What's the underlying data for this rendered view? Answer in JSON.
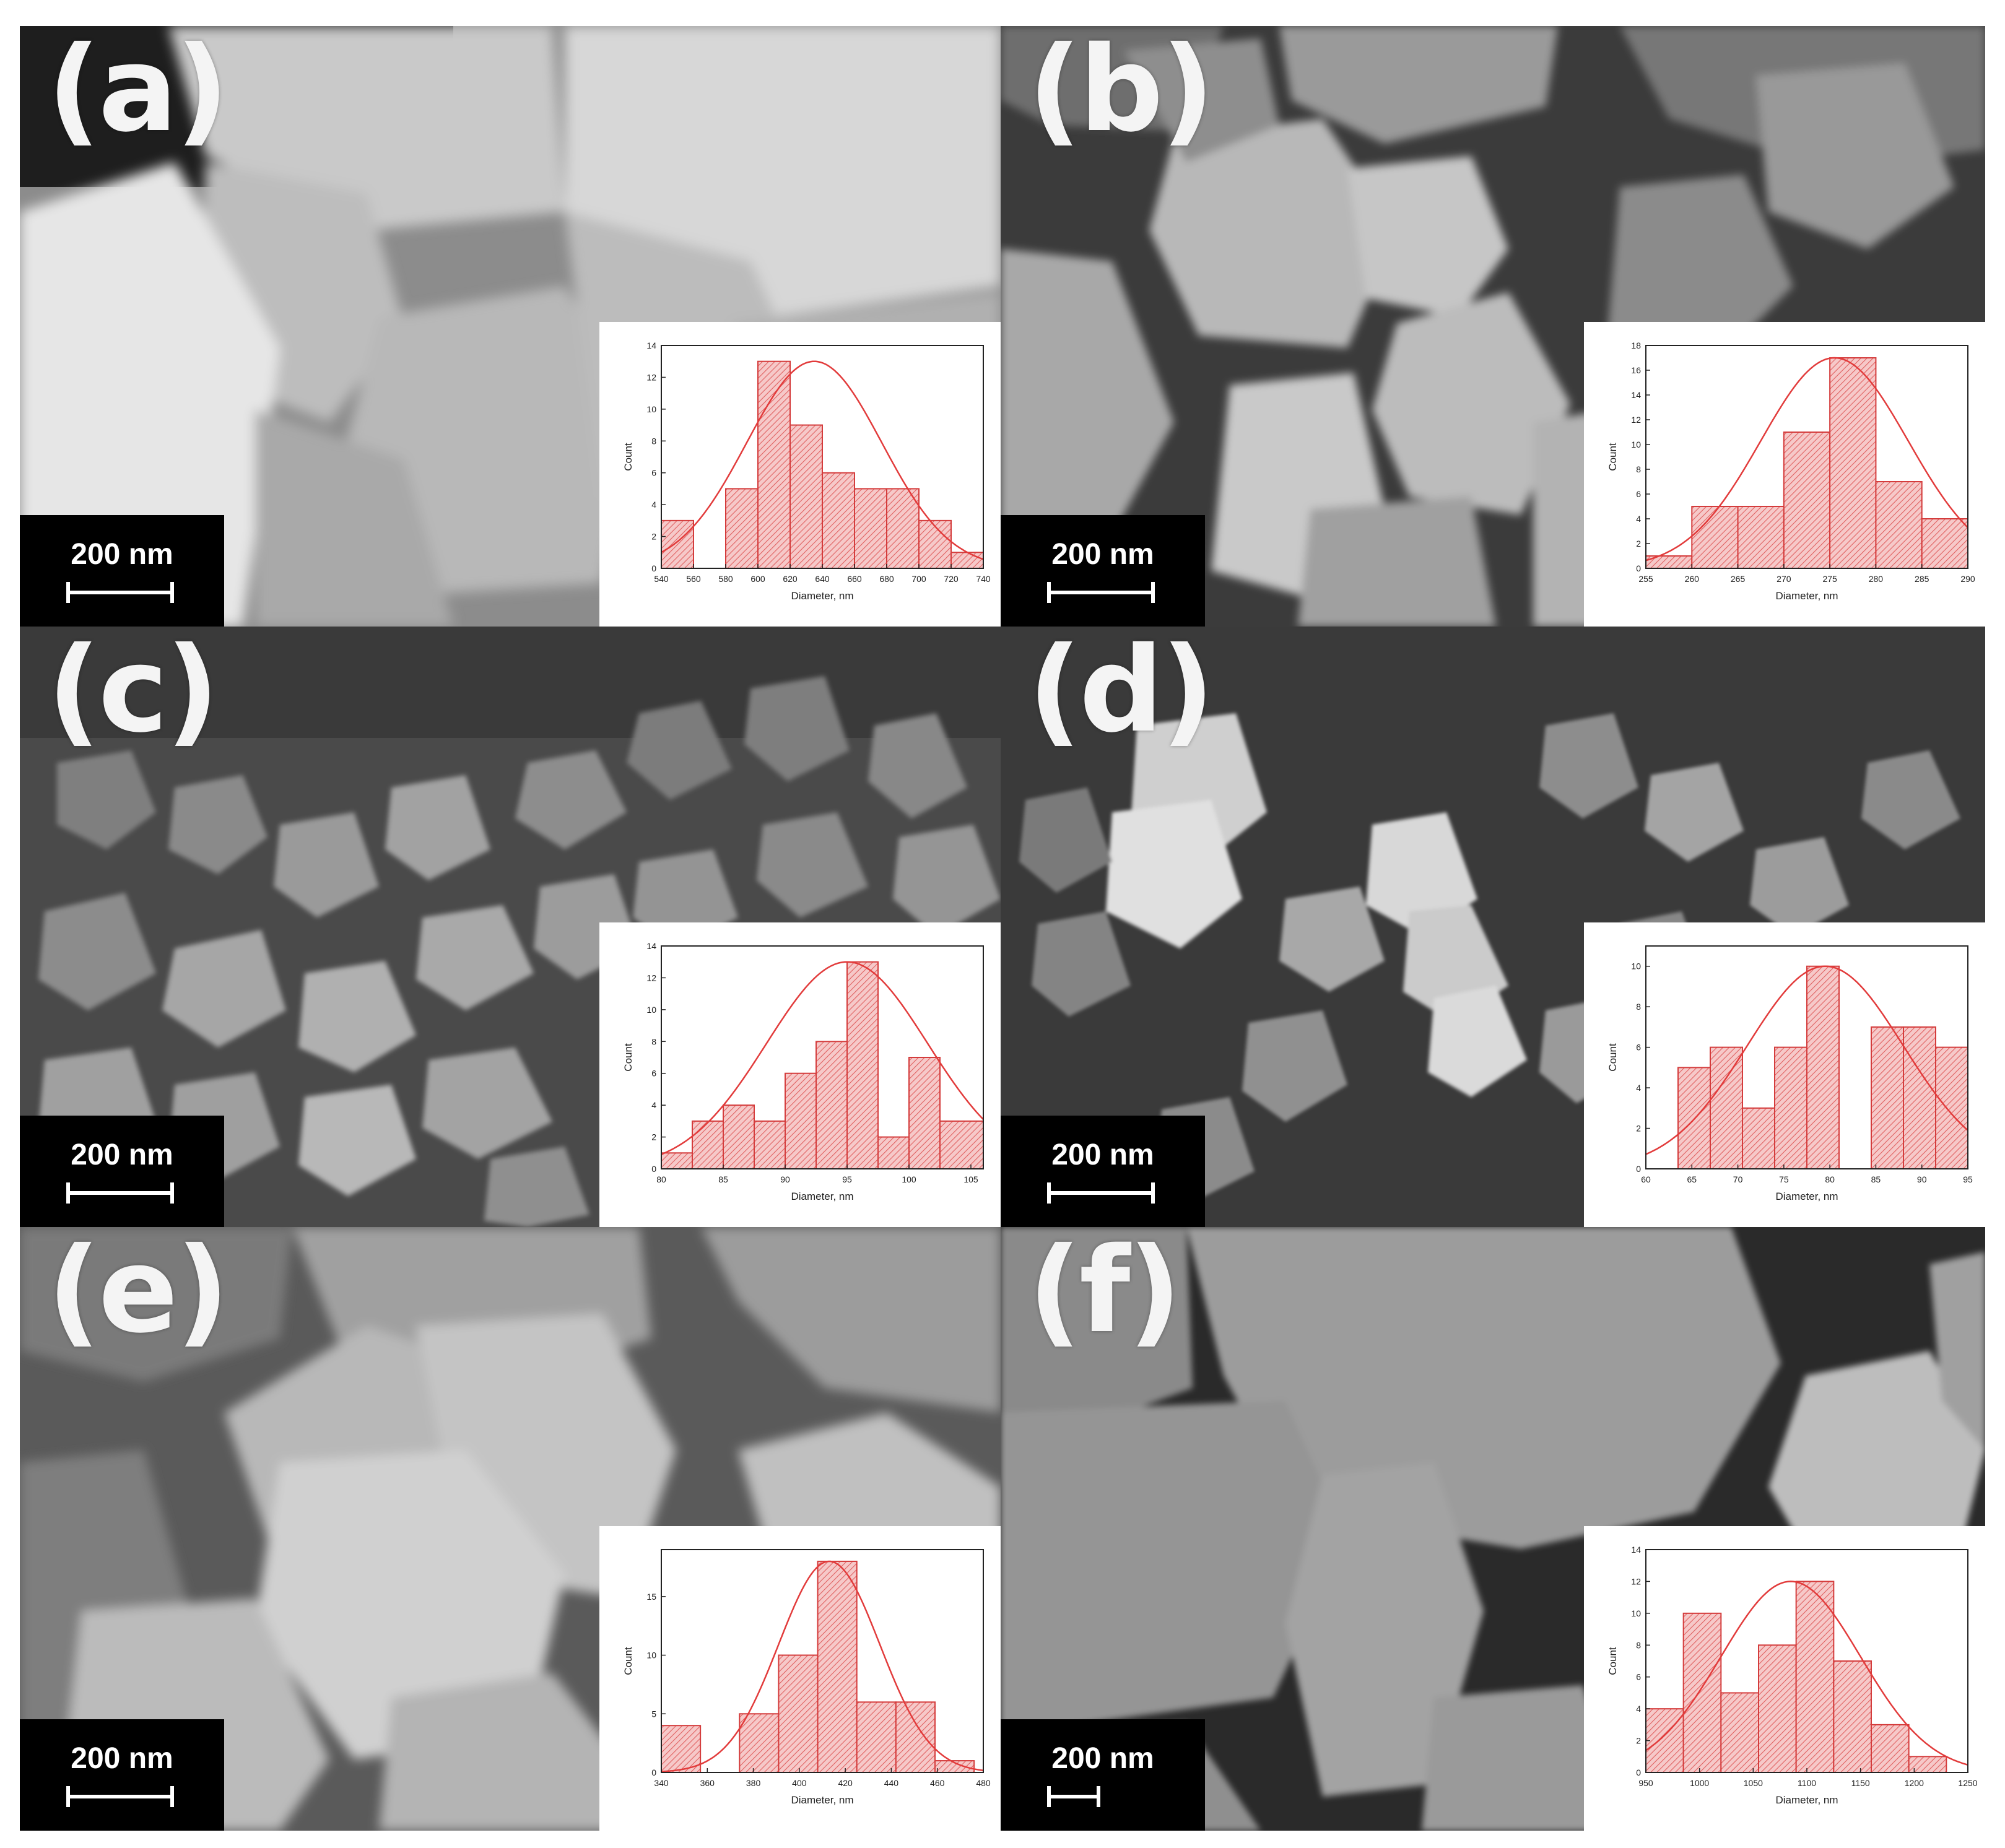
{
  "panels": [
    {
      "label": "(a)",
      "scale_bar": "200 nm",
      "histogram": {
        "type": "bar",
        "xlabel": "Diameter, nm",
        "ylabel": "Count",
        "xlim": [
          540,
          740
        ],
        "ylim": [
          0,
          14
        ],
        "xticks": [
          540,
          560,
          580,
          600,
          620,
          640,
          660,
          680,
          700,
          720,
          740
        ],
        "yticks": [
          0,
          2,
          4,
          6,
          8,
          10,
          12,
          14
        ],
        "bins": [
          [
            540,
            560,
            3
          ],
          [
            580,
            600,
            5
          ],
          [
            600,
            620,
            13
          ],
          [
            620,
            640,
            9
          ],
          [
            640,
            660,
            6
          ],
          [
            660,
            680,
            5
          ],
          [
            680,
            700,
            5
          ],
          [
            700,
            720,
            3
          ],
          [
            720,
            740,
            1
          ]
        ],
        "fit": {
          "mean": 635,
          "sd": 42,
          "peak": 13
        }
      }
    },
    {
      "label": "(b)",
      "scale_bar": "200 nm",
      "histogram": {
        "type": "bar",
        "xlabel": "Diameter, nm",
        "ylabel": "Count",
        "xlim": [
          255,
          290
        ],
        "ylim": [
          0,
          18
        ],
        "xticks": [
          255,
          260,
          265,
          270,
          275,
          280,
          285,
          290
        ],
        "yticks": [
          0,
          2,
          4,
          6,
          8,
          10,
          12,
          14,
          16,
          18
        ],
        "bins": [
          [
            255,
            260,
            1
          ],
          [
            260,
            265,
            5
          ],
          [
            265,
            270,
            5
          ],
          [
            270,
            275,
            11
          ],
          [
            275,
            280,
            17
          ],
          [
            280,
            285,
            7
          ],
          [
            285,
            290,
            4
          ]
        ],
        "fit": {
          "mean": 275.5,
          "sd": 8,
          "peak": 17
        }
      }
    },
    {
      "label": "(c)",
      "scale_bar": "200 nm",
      "histogram": {
        "type": "bar",
        "xlabel": "Diameter, nm",
        "ylabel": "Count",
        "xlim": [
          80,
          106
        ],
        "ylim": [
          0,
          14
        ],
        "xticks": [
          80,
          85,
          90,
          95,
          100,
          105
        ],
        "yticks": [
          0,
          2,
          4,
          6,
          8,
          10,
          12,
          14
        ],
        "bins": [
          [
            80,
            82.5,
            1
          ],
          [
            82.5,
            85,
            3
          ],
          [
            85,
            87.5,
            4
          ],
          [
            87.5,
            90,
            3
          ],
          [
            90,
            92.5,
            6
          ],
          [
            92.5,
            95,
            8
          ],
          [
            95,
            97.5,
            13
          ],
          [
            97.5,
            100,
            2
          ],
          [
            100,
            102.5,
            7
          ],
          [
            102.5,
            106,
            3
          ]
        ],
        "fit": {
          "mean": 95,
          "sd": 6.5,
          "peak": 13
        }
      }
    },
    {
      "label": "(d)",
      "scale_bar": "200 nm",
      "histogram": {
        "type": "bar",
        "xlabel": "Diameter, nm",
        "ylabel": "Count",
        "xlim": [
          60,
          95
        ],
        "ylim": [
          0,
          11
        ],
        "xticks": [
          60,
          65,
          70,
          75,
          80,
          85,
          90,
          95
        ],
        "yticks": [
          0,
          2,
          4,
          6,
          8,
          10
        ],
        "bins": [
          [
            63.5,
            67,
            5
          ],
          [
            67,
            70.5,
            6
          ],
          [
            70.5,
            74,
            3
          ],
          [
            74,
            77.5,
            6
          ],
          [
            77.5,
            81,
            10
          ],
          [
            84.5,
            88,
            7
          ],
          [
            88,
            91.5,
            7
          ],
          [
            91.5,
            95,
            6
          ]
        ],
        "fit": {
          "mean": 79.5,
          "sd": 8.5,
          "peak": 10
        }
      }
    },
    {
      "label": "(e)",
      "scale_bar": "200 nm",
      "histogram": {
        "type": "bar",
        "xlabel": "Diameter, nm",
        "ylabel": "Count",
        "xlim": [
          340,
          480
        ],
        "ylim": [
          0,
          19
        ],
        "xticks": [
          340,
          360,
          380,
          400,
          420,
          440,
          460,
          480
        ],
        "yticks": [
          0,
          5,
          10,
          15
        ],
        "bins": [
          [
            340,
            357,
            4
          ],
          [
            374,
            391,
            5
          ],
          [
            391,
            408,
            10
          ],
          [
            408,
            425,
            18
          ],
          [
            425,
            442,
            6
          ],
          [
            442,
            459,
            6
          ],
          [
            459,
            476,
            1
          ]
        ],
        "fit": {
          "mean": 413,
          "sd": 22,
          "peak": 18
        }
      }
    },
    {
      "label": "(f)",
      "scale_bar": "200 nm",
      "histogram": {
        "type": "bar",
        "xlabel": "Diameter, nm",
        "ylabel": "Count",
        "xlim": [
          950,
          1250
        ],
        "ylim": [
          0,
          14
        ],
        "xticks": [
          950,
          1000,
          1050,
          1100,
          1150,
          1200,
          1250
        ],
        "yticks": [
          0,
          2,
          4,
          6,
          8,
          10,
          12,
          14
        ],
        "bins": [
          [
            950,
            985,
            4
          ],
          [
            985,
            1020,
            10
          ],
          [
            1020,
            1055,
            5
          ],
          [
            1055,
            1090,
            8
          ],
          [
            1090,
            1125,
            12
          ],
          [
            1125,
            1160,
            7
          ],
          [
            1160,
            1195,
            3
          ],
          [
            1195,
            1230,
            1
          ]
        ],
        "fit": {
          "mean": 1085,
          "sd": 65,
          "peak": 12
        }
      }
    }
  ]
}
